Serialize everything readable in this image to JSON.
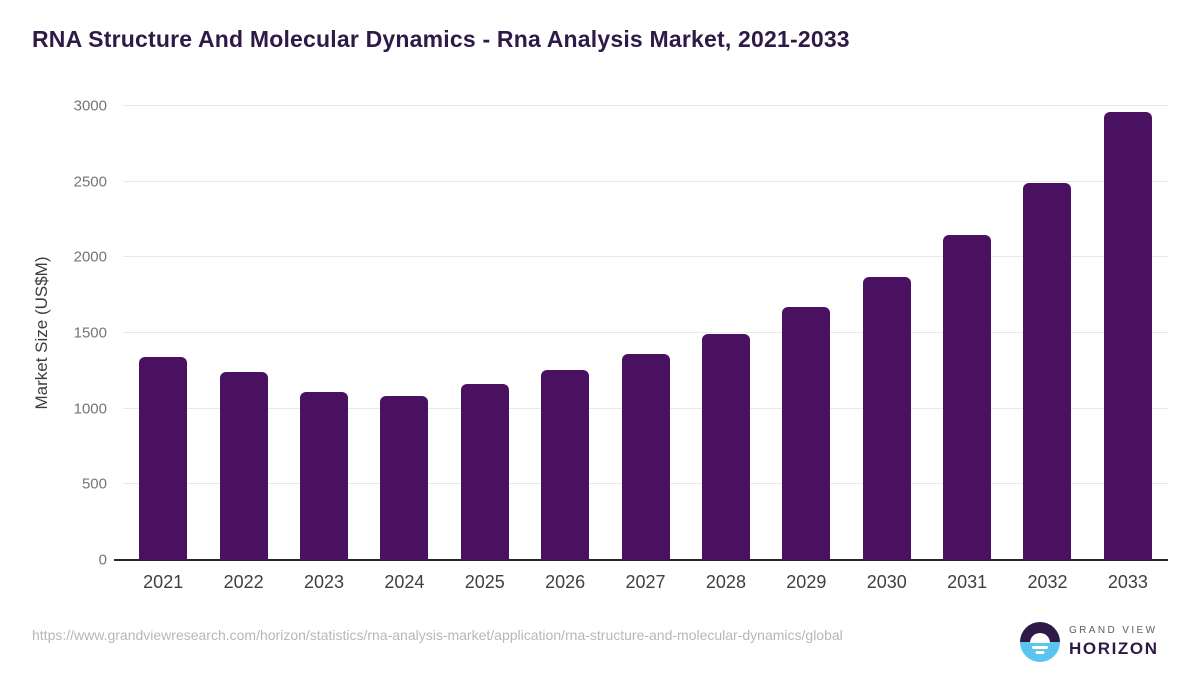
{
  "chart_data": {
    "type": "bar",
    "title": "RNA Structure And Molecular Dynamics - Rna Analysis Market, 2021-2033",
    "categories": [
      "2021",
      "2022",
      "2023",
      "2024",
      "2025",
      "2026",
      "2027",
      "2028",
      "2029",
      "2030",
      "2031",
      "2032",
      "2033"
    ],
    "values": [
      1340,
      1240,
      1112,
      1087,
      1160,
      1253,
      1360,
      1495,
      1670,
      1872,
      2145,
      2492,
      2963
    ],
    "xlabel": "",
    "ylabel": "Market Size (US$M)",
    "ylim": [
      0,
      3000
    ],
    "yticks": [
      0,
      500,
      1000,
      1500,
      2000,
      2500,
      3000
    ],
    "grid": "horizontal",
    "legend": "none",
    "bar_color": "#4a1160"
  },
  "footer": {
    "source_url": "https://www.grandviewresearch.com/horizon/statistics/rna-analysis-market/application/rna-structure-and-molecular-dynamics/global",
    "logo": {
      "top_text": "GRAND VIEW",
      "bottom_text": "HORIZON"
    }
  },
  "colors": {
    "title": "#2e1a47",
    "bar": "#4a1160",
    "gridline": "#e9e9e9",
    "axis_line": "#262626",
    "y_tick_label": "#757575",
    "x_tick_label": "#404040",
    "source_url": "#b7b7b7",
    "logo_purple": "#2e1a47",
    "logo_blue": "#59c5f0"
  }
}
